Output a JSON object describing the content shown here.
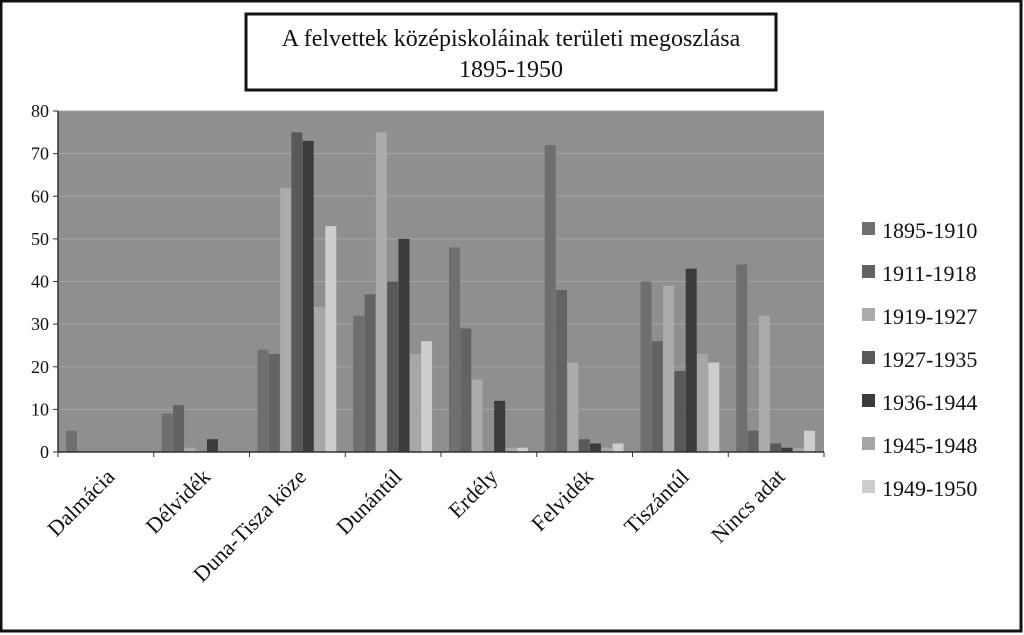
{
  "chart_data": {
    "type": "bar",
    "title": "A felvettek középiskoláinak területi megoszlása",
    "subtitle": "1895-1950",
    "xlabel": "",
    "ylabel": "",
    "ylim": [
      0,
      80
    ],
    "yticks": [
      0,
      10,
      20,
      30,
      40,
      50,
      60,
      70,
      80
    ],
    "grid": true,
    "legend_position": "right",
    "categories": [
      "Dalmácia",
      "Délvidék",
      "Duna-Tisza köze",
      "Dunántúl",
      "Erdély",
      "Felvidék",
      "Tiszántúl",
      "Nincs adat"
    ],
    "series": [
      {
        "name": "1895-1910",
        "color": "#6f6f6f",
        "values": [
          5,
          9,
          24,
          32,
          48,
          72,
          40,
          44
        ]
      },
      {
        "name": "1911-1918",
        "color": "#636363",
        "values": [
          0,
          11,
          23,
          37,
          29,
          38,
          26,
          5
        ]
      },
      {
        "name": "1919-1927",
        "color": "#ababab",
        "values": [
          0,
          1,
          62,
          75,
          17,
          21,
          39,
          32
        ]
      },
      {
        "name": "1927-1935",
        "color": "#595959",
        "values": [
          0,
          0,
          75,
          40,
          0,
          3,
          19,
          2
        ]
      },
      {
        "name": "1936-1944",
        "color": "#3b3b3b",
        "values": [
          0,
          3,
          73,
          50,
          12,
          2,
          43,
          1
        ]
      },
      {
        "name": "1945-1948",
        "color": "#a6a6a6",
        "values": [
          0,
          0,
          34,
          23,
          1,
          1,
          23,
          1
        ]
      },
      {
        "name": "1949-1950",
        "color": "#cdcdcd",
        "values": [
          0,
          0,
          53,
          26,
          1,
          2,
          21,
          5
        ]
      }
    ]
  }
}
